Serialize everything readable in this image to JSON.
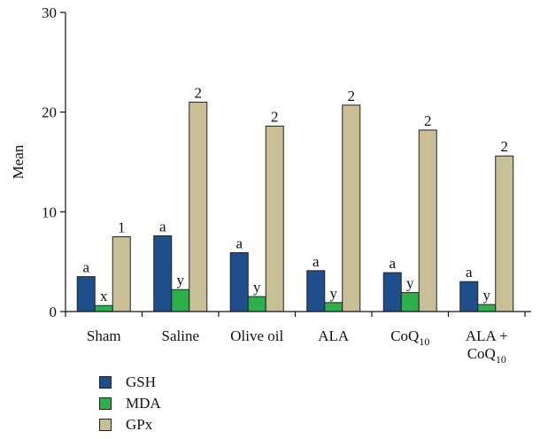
{
  "chart_data": {
    "type": "bar",
    "title": "",
    "xlabel": "",
    "ylabel": "Mean",
    "ylim": [
      0,
      30
    ],
    "yticks": [
      0,
      10,
      20,
      30
    ],
    "grid": false,
    "legend_position": "bottom-left",
    "categories": [
      {
        "label": "Sham",
        "sub": ""
      },
      {
        "label": "Saline",
        "sub": ""
      },
      {
        "label": "Olive oil",
        "sub": ""
      },
      {
        "label": "ALA",
        "sub": ""
      },
      {
        "label": "CoQ",
        "sub": "10"
      },
      {
        "label": "ALA +",
        "label2": "CoQ",
        "sub": "10"
      }
    ],
    "series": [
      {
        "name": "GSH",
        "color": "#1f4e8c",
        "values": [
          3.5,
          7.6,
          5.9,
          4.1,
          3.9,
          3.0
        ],
        "annotations": [
          "a",
          "a",
          "a",
          "a",
          "a",
          "a"
        ]
      },
      {
        "name": "MDA",
        "color": "#2db04b",
        "values": [
          0.6,
          2.2,
          1.5,
          0.9,
          1.9,
          0.7
        ],
        "annotations": [
          "x",
          "y",
          "y",
          "y",
          "y",
          "y"
        ]
      },
      {
        "name": "GPx",
        "color": "#c8bf97",
        "values": [
          7.5,
          21.0,
          18.6,
          20.7,
          18.2,
          15.6
        ],
        "annotations": [
          "1",
          "2",
          "2",
          "2",
          "2",
          "2"
        ]
      }
    ]
  }
}
